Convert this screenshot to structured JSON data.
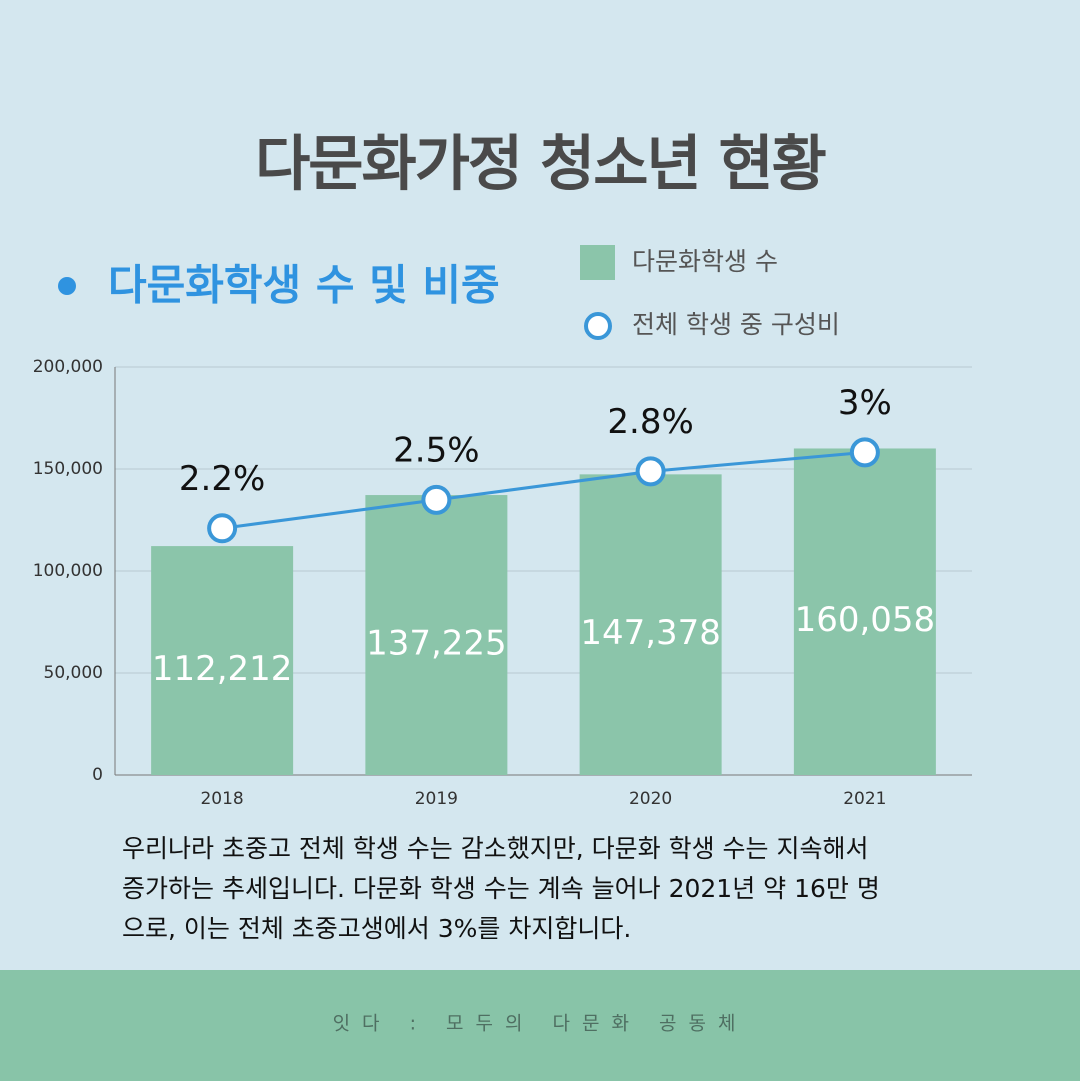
{
  "chart_data": {
    "type": "bar",
    "title": "다문화가정 청소년 현황",
    "subtitle": "다문화학생 수 및 비중",
    "categories": [
      "2018",
      "2019",
      "2020",
      "2021"
    ],
    "series": [
      {
        "name": "다문화학생 수",
        "color": "#8bc5aa",
        "values": [
          112212,
          137225,
          147378,
          160058
        ],
        "value_labels": [
          "112,212",
          "137,225",
          "147,378",
          "160,058"
        ]
      },
      {
        "name": "전체 학생 중 구성비",
        "color": "#3a97d8",
        "type": "line",
        "axis": "y2",
        "values": [
          2.2,
          2.5,
          2.8,
          3
        ],
        "value_labels": [
          "2.2%",
          "2.5%",
          "2.8%",
          "3%"
        ]
      }
    ],
    "ylim": [
      0,
      200000
    ],
    "yticks": [
      0,
      {
        "value": 50000,
        "label": "50,000"
      },
      {
        "value": 100000,
        "label": "100,000"
      },
      {
        "value": 150000,
        "label": "150,000"
      },
      {
        "value": 200000,
        "label": "200,000"
      }
    ],
    "y2lim": [
      -0.4,
      3.9
    ],
    "grid": true,
    "legend": "top-right",
    "description": [
      "우리나라 초중고 전체 학생 수는 감소했지만, 다문화 학생 수는 지속해서",
      "증가하는 추세입니다. 다문화 학생 수는 계속 늘어나 2021년 약 16만 명",
      "으로, 이는 전체 초중고생에서 3%를 차지합니다."
    ],
    "footer": "잇다 : 모두의 다문화 공동체"
  }
}
